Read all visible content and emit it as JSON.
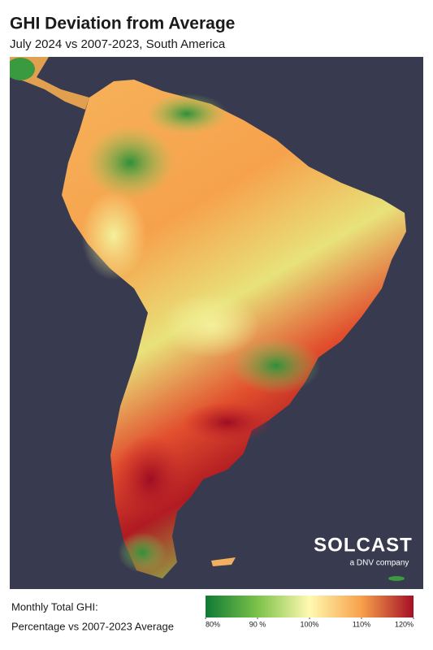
{
  "header": {
    "title": "GHI Deviation from Average",
    "subtitle": "July 2024 vs 2007-2023, South America"
  },
  "logo": {
    "name": "SOLCAST",
    "tagline": "a DNV company"
  },
  "legend": {
    "lines": [
      "Monthly Total GHI:",
      "Percentage vs 2007-2023 Average"
    ],
    "lim": [
      80,
      120
    ],
    "colors": [
      "#0e7a34",
      "#7cc24a",
      "#fff9b0",
      "#f7a04a",
      "#a50f26"
    ],
    "ticks": [
      {
        "value": 80,
        "label": "80%"
      },
      {
        "value": 90,
        "label": "90 %"
      },
      {
        "value": 100,
        "label": "100%"
      },
      {
        "value": 110,
        "label": "110%"
      },
      {
        "value": 120,
        "label": "120%"
      }
    ]
  }
}
